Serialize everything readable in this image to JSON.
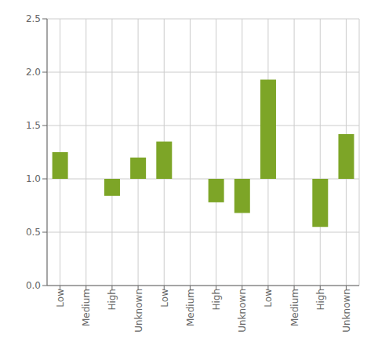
{
  "chart_data": {
    "type": "bar",
    "categories": [
      "Low",
      "Medium",
      "High",
      "Unknown",
      "Low",
      "Medium",
      "High",
      "Unknown",
      "Low",
      "Medium",
      "High",
      "Unknown"
    ],
    "values": [
      [
        1.0,
        1.25
      ],
      null,
      [
        0.84,
        1.0
      ],
      [
        1.0,
        1.2
      ],
      [
        1.0,
        1.35
      ],
      null,
      [
        0.78,
        1.0
      ],
      [
        0.68,
        1.0
      ],
      [
        1.0,
        1.93
      ],
      null,
      [
        0.55,
        1.0
      ],
      [
        1.0,
        1.42
      ]
    ],
    "color": "#7da527",
    "ylim": [
      0.0,
      2.5
    ],
    "yticks": [
      {
        "value": 0.0,
        "label": "0.0"
      },
      0.5,
      {
        "value": 1.0,
        "label": "1.0"
      },
      1.5,
      {
        "value": 2.0,
        "label": "2.0"
      },
      2.5
    ],
    "grid": true
  }
}
